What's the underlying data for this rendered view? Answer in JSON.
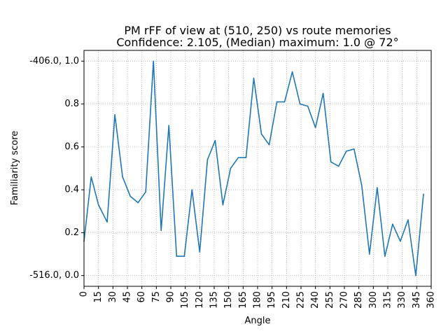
{
  "chart_data": {
    "type": "line",
    "title_lines": [
      "PM rFF of view at (510, 250) vs route memories",
      "Confidence: 2.105, (Median) maximum: 1.0 @ 72°"
    ],
    "xlabel": "Angle",
    "ylabel": "Familiarity score",
    "xlim": [
      0,
      360
    ],
    "ylim": [
      -0.05,
      1.05
    ],
    "x_ticks": [
      0,
      15,
      30,
      45,
      60,
      75,
      90,
      105,
      120,
      135,
      150,
      165,
      180,
      195,
      210,
      225,
      240,
      255,
      270,
      285,
      300,
      315,
      330,
      345,
      360
    ],
    "y_ticks": [
      {
        "value": 0.0,
        "label": "-516.0, 0.0"
      },
      {
        "value": 0.2,
        "label": "0.2"
      },
      {
        "value": 0.4,
        "label": "0.4"
      },
      {
        "value": 0.6,
        "label": "0.6"
      },
      {
        "value": 0.8,
        "label": "0.8"
      },
      {
        "value": 1.0,
        "label": "-406.0, 1.0"
      }
    ],
    "grid": true,
    "line_color": "#1f77b4",
    "series": [
      {
        "x": [
          0,
          7.5,
          15,
          24,
          32,
          40,
          48,
          56,
          64,
          72,
          80,
          88,
          96,
          104,
          112,
          120,
          128,
          136,
          144,
          152,
          160,
          168,
          176,
          184,
          192,
          200,
          208,
          216,
          224,
          232,
          240,
          248,
          256,
          264,
          272,
          280,
          288,
          296,
          304,
          312,
          320,
          328,
          336,
          344,
          352
        ],
        "y": [
          0.16,
          0.46,
          0.33,
          0.25,
          0.75,
          0.46,
          0.37,
          0.34,
          0.39,
          1.0,
          0.21,
          0.7,
          0.09,
          0.09,
          0.4,
          0.11,
          0.54,
          0.63,
          0.33,
          0.5,
          0.55,
          0.55,
          0.92,
          0.66,
          0.61,
          0.81,
          0.81,
          0.95,
          0.8,
          0.79,
          0.69,
          0.85,
          0.53,
          0.51,
          0.58,
          0.59,
          0.42,
          0.1,
          0.41,
          0.09,
          0.24,
          0.16,
          0.26,
          0.0,
          0.38
        ]
      }
    ]
  }
}
